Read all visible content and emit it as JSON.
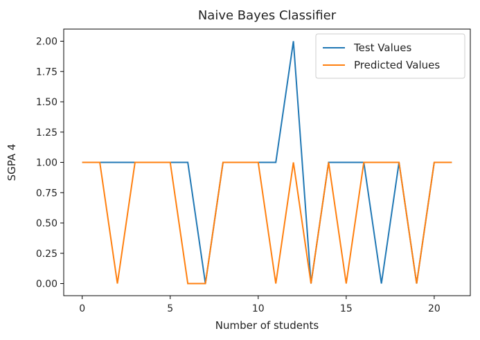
{
  "chart_data": {
    "type": "line",
    "title": "Naive Bayes Classifier",
    "xlabel": "Number of students",
    "ylabel": "SGPA 4",
    "xlim": [
      -1.05,
      22.05
    ],
    "ylim": [
      -0.1,
      2.1
    ],
    "xticks": [
      0,
      5,
      10,
      15,
      20
    ],
    "xtick_labels": [
      "0",
      "5",
      "10",
      "15",
      "20"
    ],
    "yticks": [
      0.0,
      0.25,
      0.5,
      0.75,
      1.0,
      1.25,
      1.5,
      1.75,
      2.0
    ],
    "ytick_labels": [
      "0.00",
      "0.25",
      "0.50",
      "0.75",
      "1.00",
      "1.25",
      "1.50",
      "1.75",
      "2.00"
    ],
    "grid": false,
    "legend_position": "top-right",
    "x": [
      0,
      1,
      2,
      3,
      4,
      5,
      6,
      7,
      8,
      9,
      10,
      11,
      12,
      13,
      14,
      15,
      16,
      17,
      18,
      19,
      20,
      21
    ],
    "series": [
      {
        "name": "Test Values",
        "color": "#1f77b4",
        "values": [
          1,
          1,
          1,
          1,
          1,
          1,
          1,
          0,
          1,
          1,
          1,
          1,
          2,
          0,
          1,
          1,
          1,
          0,
          1,
          0,
          1,
          1
        ]
      },
      {
        "name": "Predicted Values",
        "color": "#ff7f0e",
        "values": [
          1,
          1,
          0,
          1,
          1,
          1,
          0,
          0,
          1,
          1,
          1,
          0,
          1,
          0,
          1,
          0,
          1,
          1,
          1,
          0,
          1,
          1
        ]
      }
    ]
  }
}
